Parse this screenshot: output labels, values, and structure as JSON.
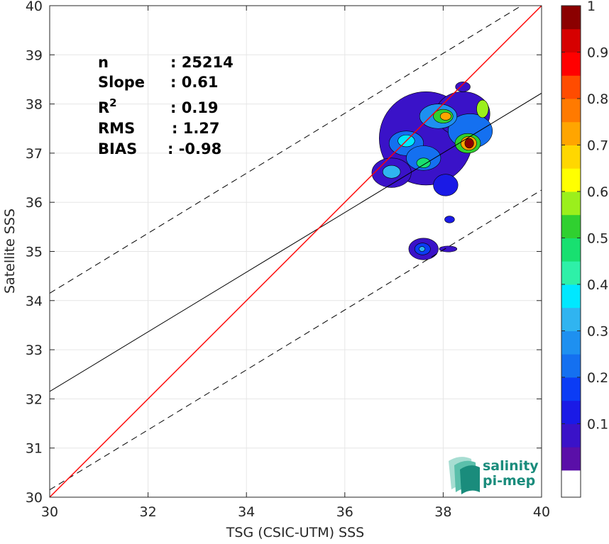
{
  "chart_data": {
    "type": "heatmap",
    "subtype": "density-contour scatter comparison",
    "xlabel": "TSG (CSIC-UTM) SSS",
    "ylabel": "Satellite SSS",
    "xlim": [
      30,
      40
    ],
    "ylim": [
      30,
      40
    ],
    "xticks": [
      "30",
      "32",
      "34",
      "36",
      "38",
      "40"
    ],
    "yticks": [
      "30",
      "31",
      "32",
      "33",
      "34",
      "35",
      "36",
      "37",
      "38",
      "39",
      "40"
    ],
    "grid": true,
    "stats": [
      {
        "key": "n",
        "value": ": 25214"
      },
      {
        "key": "Slope",
        "value": ": 0.61"
      },
      {
        "key": "R",
        "sup": "2",
        "value": ": 0.19"
      },
      {
        "key": "RMS",
        "value": ": 1.27"
      },
      {
        "key": "BIAS",
        "value": ": -0.98"
      }
    ],
    "lines": {
      "one_to_one": {
        "color": "#ff0000",
        "slope": 1,
        "intercept": 0
      },
      "fit": {
        "color": "#000000",
        "points": [
          [
            30,
            32.15
          ],
          [
            40,
            38.22
          ]
        ]
      },
      "upper_bound": {
        "color": "#000000",
        "dashed": true,
        "points": [
          [
            30,
            34.15
          ],
          [
            40,
            40.25
          ]
        ]
      },
      "lower_bound": {
        "color": "#000000",
        "dashed": true,
        "points": [
          [
            30,
            30.15
          ],
          [
            40,
            36.25
          ]
        ]
      }
    },
    "density_blobs": [
      {
        "x": 37.65,
        "y": 37.3,
        "rx": 0.95,
        "ry": 0.95,
        "level": 0.05
      },
      {
        "x": 38.4,
        "y": 37.8,
        "rx": 0.55,
        "ry": 0.45,
        "level": 0.05
      },
      {
        "x": 36.95,
        "y": 36.6,
        "rx": 0.4,
        "ry": 0.3,
        "level": 0.05
      },
      {
        "x": 38.05,
        "y": 36.35,
        "rx": 0.25,
        "ry": 0.22,
        "level": 0.12
      },
      {
        "x": 37.25,
        "y": 37.2,
        "rx": 0.35,
        "ry": 0.25,
        "level": 0.18
      },
      {
        "x": 38.55,
        "y": 37.45,
        "rx": 0.45,
        "ry": 0.35,
        "level": 0.2
      },
      {
        "x": 37.6,
        "y": 36.9,
        "rx": 0.35,
        "ry": 0.25,
        "level": 0.18
      },
      {
        "x": 37.9,
        "y": 37.75,
        "rx": 0.38,
        "ry": 0.25,
        "level": 0.25
      },
      {
        "x": 36.95,
        "y": 36.62,
        "rx": 0.18,
        "ry": 0.13,
        "level": 0.32
      },
      {
        "x": 37.25,
        "y": 37.25,
        "rx": 0.17,
        "ry": 0.12,
        "level": 0.35
      },
      {
        "x": 37.6,
        "y": 36.8,
        "rx": 0.14,
        "ry": 0.1,
        "level": 0.45
      },
      {
        "x": 38.0,
        "y": 37.75,
        "rx": 0.2,
        "ry": 0.14,
        "level": 0.5
      },
      {
        "x": 38.05,
        "y": 37.75,
        "rx": 0.11,
        "ry": 0.08,
        "level": 0.72
      },
      {
        "x": 38.8,
        "y": 37.9,
        "rx": 0.12,
        "ry": 0.18,
        "level": 0.55
      },
      {
        "x": 38.5,
        "y": 37.2,
        "rx": 0.26,
        "ry": 0.2,
        "level": 0.5
      },
      {
        "x": 38.52,
        "y": 37.2,
        "rx": 0.16,
        "ry": 0.14,
        "level": 0.7
      },
      {
        "x": 38.53,
        "y": 37.2,
        "rx": 0.09,
        "ry": 0.1,
        "level": 0.95
      },
      {
        "x": 38.4,
        "y": 38.35,
        "rx": 0.15,
        "ry": 0.1,
        "level": 0.05
      },
      {
        "x": 37.6,
        "y": 35.05,
        "rx": 0.3,
        "ry": 0.22,
        "level": 0.05
      },
      {
        "x": 38.1,
        "y": 35.05,
        "rx": 0.18,
        "ry": 0.06,
        "level": 0.05
      },
      {
        "x": 37.58,
        "y": 35.05,
        "rx": 0.16,
        "ry": 0.12,
        "level": 0.15
      },
      {
        "x": 37.57,
        "y": 35.05,
        "rx": 0.06,
        "ry": 0.05,
        "level": 0.3
      },
      {
        "x": 38.13,
        "y": 35.65,
        "rx": 0.1,
        "ry": 0.07,
        "level": 0.12
      }
    ],
    "colorbar": {
      "ticks": [
        "0.1",
        "0.2",
        "0.3",
        "0.4",
        "0.5",
        "0.6",
        "0.7",
        "0.8",
        "0.9",
        "1"
      ],
      "range": [
        0,
        1
      ],
      "levels": [
        "#ffffff",
        "#5a0fa8",
        "#3a12c8",
        "#1a1ae6",
        "#0b3cf5",
        "#1470f0",
        "#1e90f0",
        "#30b4f0",
        "#00e8ff",
        "#2ef0a8",
        "#18e070",
        "#30d030",
        "#9bef1c",
        "#ffff00",
        "#ffd700",
        "#ffa500",
        "#ff7a00",
        "#ff4c00",
        "#ff0000",
        "#d60000",
        "#8b0000"
      ]
    },
    "logo": {
      "line1": "salinity",
      "line2": "pi-mep"
    }
  }
}
